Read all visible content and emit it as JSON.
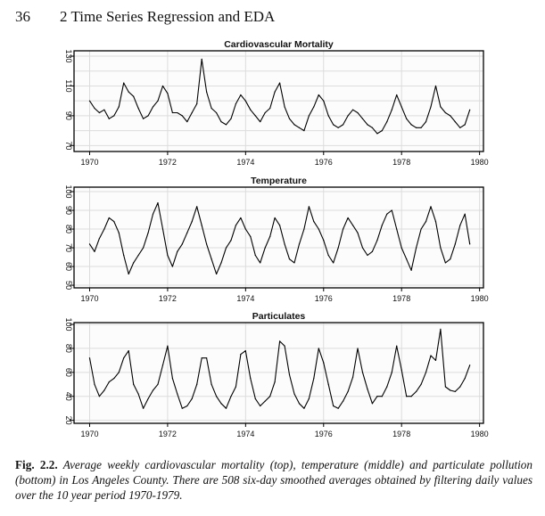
{
  "header": {
    "page_number": "36",
    "running_head": "2  Time Series Regression and EDA"
  },
  "caption": {
    "label": "Fig. 2.2.",
    "text": "Average weekly cardiovascular mortality (top), temperature (middle) and particulate pollution (bottom) in Los Angeles County. There are 508 six-day smoothed averages obtained by filtering daily values over the 10 year period 1970-1979."
  },
  "chart_data": [
    {
      "type": "line",
      "title": "Cardiovascular Mortality",
      "xlabel": "",
      "ylabel": "",
      "xlim": [
        1969.6,
        1980.1
      ],
      "ylim": [
        66,
        133.6
      ],
      "xticks": [
        1970,
        1972,
        1974,
        1976,
        1978,
        1980
      ],
      "yticks": [
        70,
        90,
        110,
        130
      ],
      "grid": true,
      "grid_y_step": 10,
      "color": "#000000",
      "x_start": 1970,
      "x_step": 0.125,
      "values": [
        100,
        95,
        92,
        94,
        88,
        90,
        96,
        112,
        106,
        103,
        95,
        88,
        90,
        96,
        100,
        110,
        105,
        92,
        92,
        90,
        86,
        92,
        98,
        128,
        106,
        95,
        92,
        86,
        84,
        88,
        98,
        104,
        100,
        94,
        90,
        86,
        92,
        95,
        106,
        112,
        96,
        88,
        84,
        82,
        80,
        90,
        96,
        104,
        100,
        90,
        84,
        82,
        84,
        90,
        94,
        92,
        88,
        84,
        82,
        78,
        80,
        86,
        94,
        104,
        96,
        88,
        84,
        82,
        82,
        86,
        96,
        110,
        96,
        92,
        90,
        86,
        82,
        84,
        94
      ]
    },
    {
      "type": "line",
      "title": "Temperature",
      "xlabel": "",
      "ylabel": "",
      "xlim": [
        1969.6,
        1980.1
      ],
      "ylim": [
        48.6,
        102.4
      ],
      "xticks": [
        1970,
        1972,
        1974,
        1976,
        1978,
        1980
      ],
      "yticks": [
        50,
        60,
        70,
        80,
        90,
        100
      ],
      "grid": true,
      "grid_y_step": 10,
      "color": "#000000",
      "x_start": 1970,
      "x_step": 0.125,
      "values": [
        72,
        68,
        75,
        80,
        86,
        84,
        78,
        66,
        56,
        62,
        66,
        70,
        78,
        88,
        94,
        80,
        66,
        60,
        68,
        72,
        78,
        84,
        92,
        82,
        72,
        64,
        56,
        62,
        70,
        74,
        82,
        86,
        80,
        76,
        66,
        62,
        70,
        76,
        86,
        82,
        72,
        64,
        62,
        72,
        80,
        92,
        84,
        80,
        74,
        66,
        62,
        70,
        80,
        86,
        82,
        78,
        70,
        66,
        68,
        74,
        82,
        88,
        90,
        80,
        70,
        64,
        58,
        70,
        80,
        84,
        92,
        84,
        70,
        62,
        64,
        72,
        82,
        88,
        72
      ]
    },
    {
      "type": "line",
      "title": "Particulates",
      "xlabel": "",
      "ylabel": "",
      "xlim": [
        1969.6,
        1980.1
      ],
      "ylim": [
        17.5,
        101.5
      ],
      "xticks": [
        1970,
        1972,
        1974,
        1976,
        1978,
        1980
      ],
      "yticks": [
        20,
        40,
        60,
        80,
        100
      ],
      "grid": true,
      "grid_y_step": 20,
      "color": "#000000",
      "x_start": 1970,
      "x_step": 0.125,
      "values": [
        72,
        50,
        40,
        45,
        52,
        55,
        60,
        72,
        78,
        50,
        42,
        30,
        38,
        45,
        50,
        66,
        82,
        55,
        42,
        30,
        32,
        38,
        50,
        72,
        72,
        50,
        40,
        34,
        30,
        40,
        48,
        75,
        78,
        55,
        38,
        32,
        36,
        40,
        52,
        86,
        82,
        58,
        42,
        34,
        30,
        38,
        55,
        80,
        68,
        50,
        32,
        30,
        36,
        44,
        56,
        80,
        60,
        46,
        34,
        40,
        40,
        48,
        60,
        82,
        62,
        40,
        40,
        44,
        50,
        60,
        74,
        70,
        96,
        48,
        45,
        44,
        48,
        55,
        66
      ]
    }
  ]
}
